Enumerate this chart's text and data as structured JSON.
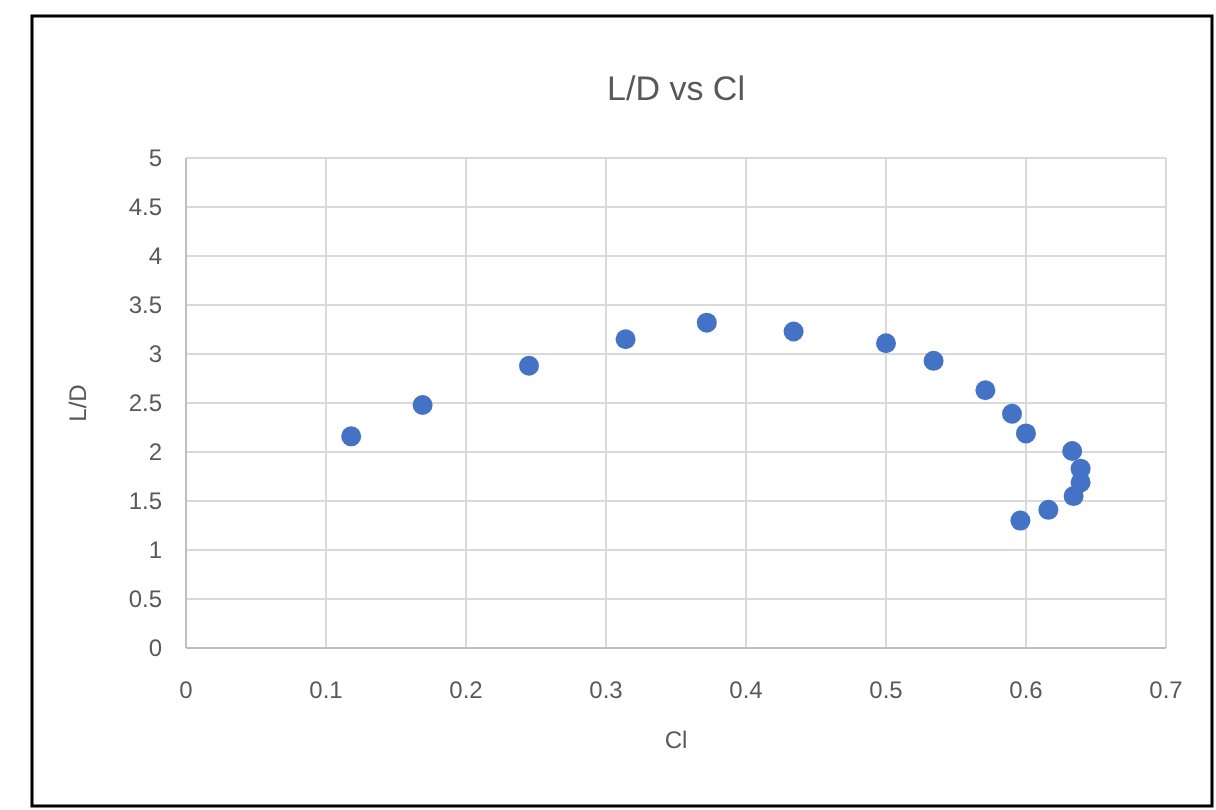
{
  "chart_data": {
    "type": "scatter",
    "title": "L/D vs Cl",
    "xlabel": "Cl",
    "ylabel": "L/D",
    "x": [
      0.118,
      0.169,
      0.245,
      0.314,
      0.372,
      0.434,
      0.5,
      0.534,
      0.571,
      0.59,
      0.6,
      0.633,
      0.639,
      0.639,
      0.634,
      0.616,
      0.596
    ],
    "series": [
      {
        "color": "#4472c4",
        "values": [
          2.16,
          2.48,
          2.88,
          3.15,
          3.32,
          3.23,
          3.11,
          2.93,
          2.63,
          2.39,
          2.19,
          2.01,
          1.83,
          1.69,
          1.55,
          1.41,
          1.3
        ]
      }
    ],
    "xlim": [
      0,
      0.7
    ],
    "xticks": [
      0,
      0.1,
      0.2,
      0.3,
      0.4,
      0.5,
      0.6,
      0.7
    ],
    "ylim": [
      0,
      5
    ],
    "yticks": [
      0,
      0.5,
      1,
      1.5,
      2,
      2.5,
      3,
      3.5,
      4,
      4.5,
      5
    ],
    "grid": true,
    "marker": "circle"
  }
}
